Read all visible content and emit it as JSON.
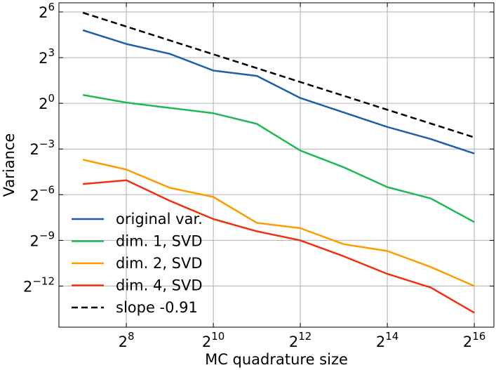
{
  "chart_data": {
    "type": "line",
    "title": "",
    "xlabel": "MC quadrature size",
    "ylabel": "Variance",
    "xscale": "log2",
    "yscale": "log2",
    "xlim_exp": [
      6.45,
      16.45
    ],
    "ylim_exp": [
      -14.7,
      6.6
    ],
    "grid": true,
    "legend_position": "lower-left",
    "x_ticks": [
      {
        "base": "2",
        "exp": "8",
        "value": 8
      },
      {
        "base": "2",
        "exp": "10",
        "value": 10
      },
      {
        "base": "2",
        "exp": "12",
        "value": 12
      },
      {
        "base": "2",
        "exp": "14",
        "value": 14
      },
      {
        "base": "2",
        "exp": "16",
        "value": 16
      }
    ],
    "y_ticks": [
      {
        "base": "2",
        "exp": "6",
        "value": 6
      },
      {
        "base": "2",
        "exp": "3",
        "value": 3
      },
      {
        "base": "2",
        "exp": "0",
        "value": 0
      },
      {
        "base": "2",
        "exp": "−3",
        "value": -3
      },
      {
        "base": "2",
        "exp": "−6",
        "value": -6
      },
      {
        "base": "2",
        "exp": "−9",
        "value": -9
      },
      {
        "base": "2",
        "exp": "−12",
        "value": -12
      }
    ],
    "x_exponents": [
      7,
      8,
      9,
      10,
      11,
      12,
      13,
      14,
      15,
      16
    ],
    "series": [
      {
        "name": "original var.",
        "color": "#1f5fa8",
        "dashed": false,
        "values_log2": [
          4.8,
          3.9,
          3.25,
          2.15,
          1.8,
          0.35,
          -0.6,
          -1.55,
          -2.35,
          -3.3
        ]
      },
      {
        "name": "dim. 1, SVD",
        "color": "#1db954",
        "dashed": false,
        "values_log2": [
          0.55,
          0.05,
          -0.3,
          -0.65,
          -1.35,
          -3.1,
          -4.2,
          -5.5,
          -6.25,
          -7.8
        ]
      },
      {
        "name": "dim. 2, SVD",
        "color": "#ff9a00",
        "dashed": false,
        "values_log2": [
          -3.7,
          -4.35,
          -5.55,
          -6.15,
          -7.85,
          -8.2,
          -9.25,
          -9.7,
          -10.75,
          -12.0
        ]
      },
      {
        "name": "dim. 4, SVD",
        "color": "#f03010",
        "dashed": false,
        "values_log2": [
          -5.3,
          -5.05,
          -6.4,
          -7.6,
          -8.4,
          -9.0,
          -10.05,
          -11.2,
          -12.1,
          -13.75
        ]
      },
      {
        "name": "slope -0.91",
        "color": "#000000",
        "dashed": true,
        "values_log2": [
          5.95,
          5.04,
          4.13,
          3.22,
          2.31,
          1.4,
          0.49,
          -0.42,
          -1.33,
          -2.24
        ]
      }
    ]
  }
}
